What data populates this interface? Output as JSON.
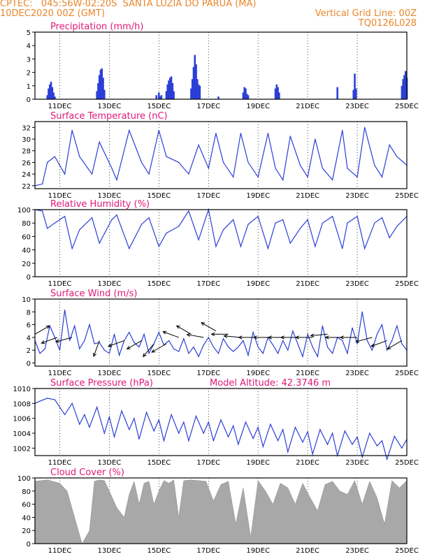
{
  "header": {
    "line1_left": "CPTEC:   045:56W-02:20S  SANTA LUZIA DO PARUA (MA)",
    "line2_left": "10DEC2020 00Z (GMT)",
    "line2_right": "Vertical Grid Line: 00Z",
    "line3_right": "TQ0126L028"
  },
  "colors": {
    "header": "#e8862a",
    "title": "#e0187a",
    "line": "#2b3fd6",
    "bar": "#2b3fd6",
    "cloud": "#a8a8a8",
    "grid": "#000000"
  },
  "x_axis": {
    "ticks": [
      "11DEC",
      "13DEC",
      "15DEC",
      "17DEC",
      "19DEC",
      "21DEC",
      "23DEC",
      "25DEC"
    ],
    "tick_days": [
      11,
      13,
      15,
      17,
      19,
      21,
      23,
      25
    ],
    "range_days": [
      10.0,
      25.0
    ]
  },
  "chart_data": [
    {
      "type": "bar",
      "title": "Precipitation (mm/h)",
      "ylim": [
        0,
        5
      ],
      "yticks": [
        "0",
        "1",
        "2",
        "3",
        "4",
        "5"
      ],
      "x_day": [
        10.5,
        10.55,
        10.6,
        10.65,
        10.7,
        10.75,
        10.8,
        12.5,
        12.55,
        12.6,
        12.65,
        12.7,
        12.75,
        12.8,
        14.9,
        15.0,
        15.05,
        15.1,
        15.3,
        15.35,
        15.4,
        15.45,
        15.5,
        15.55,
        15.6,
        16.3,
        16.35,
        16.4,
        16.45,
        16.5,
        16.55,
        16.6,
        16.65,
        17.4,
        18.4,
        18.45,
        18.5,
        18.55,
        18.6,
        19.7,
        19.75,
        19.8,
        19.85,
        22.2,
        22.85,
        22.9,
        22.95,
        24.8,
        24.85,
        24.9,
        24.95,
        25.0
      ],
      "values": [
        0.3,
        0.8,
        1.1,
        1.3,
        0.9,
        0.5,
        0.2,
        0.6,
        1.2,
        1.8,
        2.2,
        2.3,
        1.6,
        0.7,
        0.3,
        0.5,
        0.2,
        0.3,
        0.6,
        1.1,
        1.4,
        1.6,
        1.7,
        1.2,
        0.6,
        0.8,
        1.5,
        2.4,
        3.3,
        2.6,
        1.5,
        1.1,
        1.0,
        0.2,
        0.5,
        0.9,
        0.8,
        0.4,
        0.3,
        0.8,
        1.1,
        0.9,
        0.5,
        0.9,
        0.7,
        1.9,
        0.8,
        1.0,
        1.5,
        1.8,
        2.1,
        1.6
      ]
    },
    {
      "type": "line",
      "title": "Surface Temperature (nC)",
      "ylim": [
        21.5,
        33
      ],
      "yticks": [
        "22",
        "24",
        "26",
        "28",
        "30",
        "32"
      ],
      "x_day": [
        10.0,
        10.3,
        10.5,
        10.8,
        11.2,
        11.5,
        11.8,
        12.3,
        12.6,
        13.1,
        13.3,
        13.8,
        14.3,
        14.6,
        15.0,
        15.3,
        15.8,
        16.2,
        16.6,
        17.0,
        17.3,
        17.6,
        18.0,
        18.3,
        18.6,
        19.0,
        19.4,
        19.7,
        20.0,
        20.3,
        20.7,
        21.0,
        21.3,
        21.6,
        22.0,
        22.4,
        22.6,
        23.0,
        23.3,
        23.7,
        24.0,
        24.3,
        24.6,
        25.0
      ],
      "values": [
        22.0,
        22.3,
        26.0,
        27.0,
        24.0,
        31.5,
        27.0,
        24.0,
        29.5,
        25.0,
        23.0,
        31.5,
        26.0,
        24.0,
        31.5,
        27.0,
        26.0,
        24.0,
        29.0,
        25.0,
        31.0,
        26.0,
        23.5,
        31.0,
        26.0,
        23.5,
        31.0,
        25.0,
        23.0,
        30.5,
        25.5,
        23.5,
        30.0,
        25.0,
        23.0,
        31.5,
        25.0,
        23.5,
        32.0,
        25.5,
        23.5,
        29.0,
        27.0,
        25.5
      ]
    },
    {
      "type": "line",
      "title": "Relative Humidity (%)",
      "ylim": [
        0,
        100
      ],
      "yticks": [
        "0",
        "20",
        "40",
        "60",
        "80",
        "100"
      ],
      "x_day": [
        10.0,
        10.3,
        10.5,
        10.8,
        11.2,
        11.5,
        11.8,
        12.3,
        12.6,
        13.1,
        13.3,
        13.8,
        14.3,
        14.6,
        15.0,
        15.3,
        15.8,
        16.2,
        16.6,
        17.0,
        17.3,
        17.6,
        18.0,
        18.3,
        18.6,
        19.0,
        19.4,
        19.7,
        20.0,
        20.3,
        20.7,
        21.0,
        21.3,
        21.6,
        22.0,
        22.4,
        22.6,
        23.0,
        23.3,
        23.7,
        24.0,
        24.3,
        24.6,
        25.0
      ],
      "values": [
        100,
        98,
        72,
        80,
        90,
        42,
        70,
        88,
        50,
        85,
        92,
        42,
        78,
        88,
        45,
        65,
        75,
        98,
        55,
        100,
        45,
        70,
        85,
        45,
        78,
        90,
        42,
        80,
        85,
        50,
        72,
        85,
        45,
        80,
        90,
        42,
        80,
        90,
        42,
        80,
        88,
        58,
        75,
        90
      ]
    },
    {
      "type": "line",
      "title": "Surface Wind (m/s)",
      "ylim": [
        -0.5,
        10
      ],
      "yticks": [
        "0",
        "2",
        "4",
        "6",
        "8",
        "10"
      ],
      "x_day": [
        10.0,
        10.2,
        10.4,
        10.6,
        10.8,
        11.0,
        11.2,
        11.4,
        11.6,
        11.8,
        12.0,
        12.2,
        12.4,
        12.6,
        12.8,
        13.0,
        13.2,
        13.4,
        13.6,
        13.8,
        14.0,
        14.2,
        14.4,
        14.6,
        14.8,
        15.0,
        15.2,
        15.4,
        15.6,
        15.8,
        16.0,
        16.2,
        16.4,
        16.6,
        16.8,
        17.0,
        17.2,
        17.4,
        17.6,
        17.8,
        18.0,
        18.2,
        18.4,
        18.6,
        18.8,
        19.0,
        19.2,
        19.4,
        19.6,
        19.8,
        20.0,
        20.2,
        20.4,
        20.6,
        20.8,
        21.0,
        21.2,
        21.4,
        21.6,
        21.8,
        22.0,
        22.2,
        22.4,
        22.6,
        22.8,
        23.0,
        23.2,
        23.4,
        23.6,
        23.8,
        24.0,
        24.2,
        24.4,
        24.6,
        24.8,
        25.0
      ],
      "values": [
        3.5,
        1.5,
        2.2,
        5.8,
        4.0,
        2.0,
        8.3,
        3.5,
        5.8,
        2.2,
        3.5,
        6.0,
        3.0,
        3.2,
        2.0,
        1.5,
        4.5,
        1.2,
        3.5,
        4.8,
        3.2,
        2.5,
        4.5,
        1.5,
        3.0,
        4.8,
        2.8,
        3.5,
        2.2,
        1.8,
        3.8,
        1.5,
        2.5,
        1.0,
        2.8,
        4.0,
        2.5,
        1.5,
        3.8,
        2.5,
        1.8,
        2.5,
        3.5,
        1.2,
        4.8,
        2.5,
        1.5,
        4.0,
        2.8,
        1.5,
        3.5,
        2.0,
        5.0,
        3.0,
        1.0,
        4.5,
        2.5,
        1.0,
        5.8,
        2.5,
        1.5,
        4.0,
        3.5,
        1.5,
        5.5,
        3.0,
        8.0,
        3.5,
        2.0,
        4.5,
        6.0,
        2.0,
        3.5,
        5.8,
        3.0,
        2.0
      ],
      "arrows_day": [
        10.0,
        10.9,
        11.5,
        12.6,
        13.6,
        14.3,
        14.8,
        15.3,
        15.8,
        16.3,
        16.8,
        17.3,
        17.8,
        18.3,
        18.9,
        19.5,
        20.1,
        20.6,
        21.2,
        21.8,
        22.4,
        23.0,
        23.6,
        24.2,
        24.8
      ],
      "arrows_speed": [
        4.5,
        4.0,
        4.0,
        3.5,
        3.5,
        3.5,
        3.0,
        3.0,
        4.0,
        4.5,
        4.0,
        5.0,
        4.5,
        4.0,
        4.0,
        4.0,
        4.0,
        4.0,
        4.0,
        4.5,
        4.0,
        4.0,
        4.0,
        3.5,
        3.5
      ],
      "arrows_dir_deg": [
        30,
        200,
        195,
        250,
        200,
        210,
        230,
        210,
        160,
        150,
        170,
        150,
        180,
        175,
        180,
        180,
        180,
        180,
        180,
        185,
        180,
        180,
        195,
        200,
        210
      ]
    },
    {
      "type": "line",
      "title": "Surface Pressure (hPa)",
      "annotation": "Model Altitude: 42.3746  m",
      "ylim": [
        1001,
        1010
      ],
      "yticks": [
        "1002",
        "1004",
        "1006",
        "1008",
        "1010"
      ],
      "x_day": [
        10.0,
        10.2,
        10.5,
        10.8,
        11.0,
        11.2,
        11.5,
        11.8,
        12.0,
        12.2,
        12.5,
        12.8,
        13.0,
        13.2,
        13.5,
        13.8,
        14.0,
        14.2,
        14.5,
        14.8,
        15.0,
        15.2,
        15.5,
        15.8,
        16.0,
        16.2,
        16.5,
        16.8,
        17.0,
        17.2,
        17.5,
        17.8,
        18.0,
        18.2,
        18.5,
        18.8,
        19.0,
        19.2,
        19.5,
        19.8,
        20.0,
        20.2,
        20.5,
        20.8,
        21.0,
        21.2,
        21.5,
        21.8,
        22.0,
        22.2,
        22.5,
        22.8,
        23.0,
        23.2,
        23.5,
        23.8,
        24.0,
        24.2,
        24.5,
        24.8,
        25.0
      ],
      "values": [
        1008.0,
        1008.3,
        1008.7,
        1008.5,
        1007.5,
        1006.5,
        1008.0,
        1005.2,
        1006.5,
        1004.8,
        1007.5,
        1004.0,
        1006.2,
        1003.5,
        1007.0,
        1004.5,
        1006.0,
        1003.2,
        1006.8,
        1004.3,
        1005.8,
        1003.0,
        1006.5,
        1004.0,
        1005.5,
        1003.0,
        1006.3,
        1004.0,
        1005.5,
        1003.0,
        1005.8,
        1003.5,
        1005.0,
        1002.5,
        1005.5,
        1003.3,
        1004.8,
        1002.2,
        1005.2,
        1003.0,
        1004.5,
        1001.5,
        1004.8,
        1002.8,
        1004.2,
        1001.2,
        1004.5,
        1002.5,
        1004.0,
        1001.0,
        1004.3,
        1002.5,
        1003.5,
        1000.8,
        1004.0,
        1002.3,
        1003.0,
        1000.5,
        1003.6,
        1002.0,
        1003.2
      ]
    },
    {
      "type": "area",
      "title": "Cloud Cover (%)",
      "ylim": [
        0,
        100
      ],
      "yticks": [
        "0",
        "20",
        "40",
        "60",
        "80",
        "100"
      ],
      "x_day": [
        10.0,
        10.5,
        11.0,
        11.3,
        11.6,
        11.9,
        12.2,
        12.4,
        12.6,
        12.8,
        13.0,
        13.3,
        13.6,
        13.8,
        14.0,
        14.2,
        14.4,
        14.6,
        14.8,
        15.0,
        15.2,
        15.4,
        15.6,
        15.8,
        16.0,
        16.3,
        16.6,
        16.9,
        17.2,
        17.5,
        17.8,
        18.1,
        18.4,
        18.7,
        19.0,
        19.3,
        19.6,
        19.9,
        20.2,
        20.5,
        20.8,
        21.1,
        21.4,
        21.7,
        22.0,
        22.3,
        22.6,
        22.9,
        23.2,
        23.5,
        23.8,
        24.1,
        24.4,
        24.7,
        25.0
      ],
      "values": [
        95,
        97,
        92,
        80,
        40,
        0,
        20,
        95,
        97,
        96,
        80,
        55,
        40,
        75,
        95,
        60,
        92,
        95,
        60,
        80,
        96,
        92,
        97,
        40,
        96,
        97,
        96,
        95,
        65,
        90,
        95,
        30,
        85,
        10,
        96,
        80,
        60,
        92,
        85,
        60,
        92,
        70,
        50,
        90,
        95,
        80,
        75,
        96,
        60,
        95,
        70,
        30,
        96,
        85,
        96
      ]
    }
  ]
}
